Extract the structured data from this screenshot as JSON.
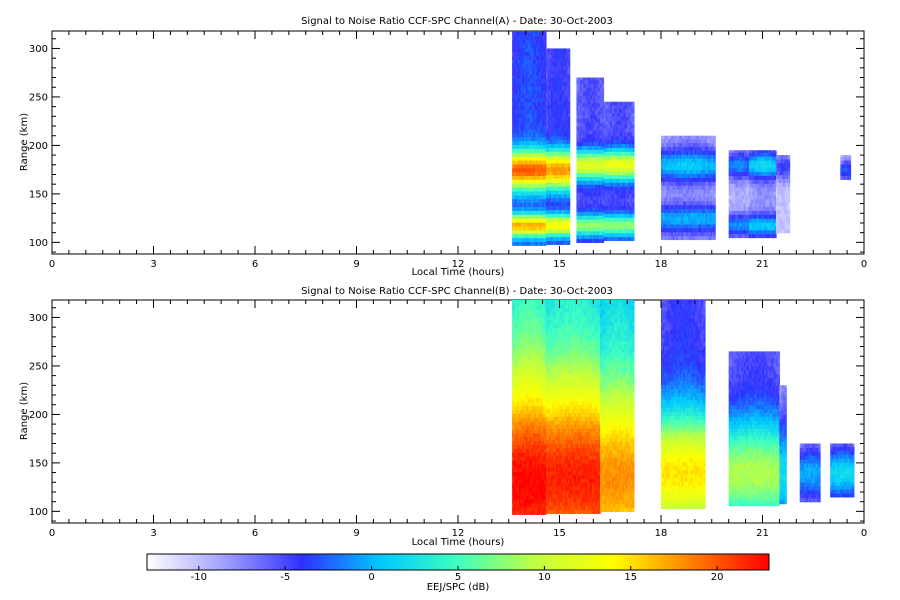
{
  "chart_data": [
    {
      "type": "heatmap",
      "title": "Signal to Noise Ratio CCF-SPC Channel(A) - Date: 30-Oct-2003",
      "xlabel": "Local Time (hours)",
      "ylabel": "Range (km)",
      "xlim": [
        0,
        24
      ],
      "ylim": [
        88,
        318
      ],
      "x_tick_labels": [
        "0",
        "3",
        "6",
        "9",
        "12",
        "15",
        "18",
        "21",
        "0"
      ],
      "y_ticks": [
        100,
        150,
        200,
        250,
        300
      ],
      "blocks": [
        {
          "x": [
            13.6,
            14.6
          ],
          "y": [
            97,
            318
          ],
          "peaks": [
            [
              175,
              20,
              14
            ],
            [
              118,
              17,
              8
            ]
          ],
          "base": -3
        },
        {
          "x": [
            14.6,
            15.3
          ],
          "y": [
            98,
            300
          ],
          "peaks": [
            [
              175,
              18,
              14
            ],
            [
              118,
              14,
              8
            ]
          ],
          "base": -4
        },
        {
          "x": [
            15.5,
            16.3
          ],
          "y": [
            100,
            270
          ],
          "peaks": [
            [
              180,
              12,
              11
            ],
            [
              118,
              8,
              8
            ]
          ],
          "base": -5
        },
        {
          "x": [
            16.3,
            17.2
          ],
          "y": [
            102,
            245
          ],
          "peaks": [
            [
              180,
              13,
              11
            ],
            [
              118,
              8,
              8
            ]
          ],
          "base": -5
        },
        {
          "x": [
            18.0,
            19.6
          ],
          "y": [
            103,
            210
          ],
          "peaks": [
            [
              180,
              1,
              12
            ],
            [
              125,
              0,
              10
            ]
          ],
          "base": -8
        },
        {
          "x": [
            20.0,
            20.6
          ],
          "y": [
            105,
            195
          ],
          "peaks": [
            [
              180,
              -1,
              10
            ],
            [
              118,
              -1,
              8
            ]
          ],
          "base": -9
        },
        {
          "x": [
            20.6,
            21.4
          ],
          "y": [
            105,
            195
          ],
          "peaks": [
            [
              180,
              2,
              10
            ],
            [
              118,
              1,
              8
            ]
          ],
          "base": -8
        },
        {
          "x": [
            21.4,
            21.8
          ],
          "y": [
            110,
            190
          ],
          "peaks": [
            [
              178,
              -4,
              10
            ]
          ],
          "base": -10
        },
        {
          "x": [
            23.3,
            23.6
          ],
          "y": [
            165,
            190
          ],
          "peaks": [
            [
              175,
              -3,
              8
            ]
          ],
          "base": -10
        }
      ]
    },
    {
      "type": "heatmap",
      "title": "Signal to Noise Ratio CCF-SPC Channel(B) - Date: 30-Oct-2003",
      "xlabel": "Local Time (hours)",
      "ylabel": "Range (km)",
      "xlim": [
        0,
        24
      ],
      "ylim": [
        88,
        318
      ],
      "x_tick_labels": [
        "0",
        "3",
        "6",
        "9",
        "12",
        "15",
        "18",
        "21",
        "0"
      ],
      "y_ticks": [
        100,
        150,
        200,
        250,
        300
      ],
      "blocks": [
        {
          "x": [
            13.6,
            14.6
          ],
          "y": [
            97,
            318
          ],
          "peaks": [
            [
              130,
              23,
              80
            ]
          ],
          "base": 4
        },
        {
          "x": [
            14.6,
            16.2
          ],
          "y": [
            98,
            318
          ],
          "peaks": [
            [
              135,
              22,
              75
            ]
          ],
          "base": 3
        },
        {
          "x": [
            16.2,
            17.2
          ],
          "y": [
            100,
            318
          ],
          "peaks": [
            [
              135,
              18,
              70
            ]
          ],
          "base": 2
        },
        {
          "x": [
            18.0,
            19.3
          ],
          "y": [
            103,
            318
          ],
          "peaks": [
            [
              140,
              15,
              45
            ]
          ],
          "base": -4
        },
        {
          "x": [
            20.0,
            21.5
          ],
          "y": [
            106,
            265
          ],
          "peaks": [
            [
              140,
              9,
              40
            ]
          ],
          "base": -5
        },
        {
          "x": [
            21.5,
            21.7
          ],
          "y": [
            108,
            230
          ],
          "peaks": [
            [
              140,
              2,
              40
            ]
          ],
          "base": -8
        },
        {
          "x": [
            22.1,
            22.7
          ],
          "y": [
            110,
            170
          ],
          "peaks": [
            [
              140,
              0,
              20
            ]
          ],
          "base": -9
        },
        {
          "x": [
            23.0,
            23.7
          ],
          "y": [
            115,
            170
          ],
          "peaks": [
            [
              140,
              2,
              20
            ]
          ],
          "base": -9
        }
      ]
    }
  ],
  "colorbar": {
    "label": "EEJ/SPC (dB)",
    "min": -13,
    "max": 23,
    "tick_labels": [
      "-10",
      "-5",
      "0",
      "5",
      "10",
      "15",
      "20"
    ],
    "colors": [
      "#ffffff",
      "#a0a0ff",
      "#3030ff",
      "#00c8ff",
      "#40ffc0",
      "#c0ff40",
      "#ffff00",
      "#ff8000",
      "#ff0000"
    ]
  }
}
